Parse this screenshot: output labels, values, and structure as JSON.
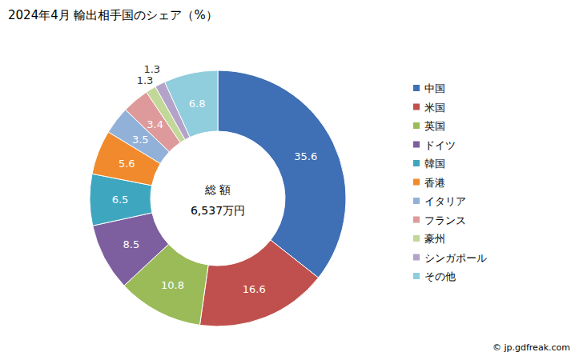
{
  "chart_data": {
    "type": "pie",
    "title": "2024年4月 輸出相手国のシェア（%）",
    "categories": [
      "中国",
      "米国",
      "英国",
      "ドイツ",
      "韓国",
      "香港",
      "イタリア",
      "フランス",
      "豪州",
      "シンガポール",
      "その他"
    ],
    "values": [
      35.6,
      16.6,
      10.8,
      8.5,
      6.5,
      5.6,
      3.5,
      3.4,
      1.3,
      1.3,
      6.8
    ],
    "colors": [
      "#3f6fb5",
      "#c0504d",
      "#9bbb59",
      "#7d5fa0",
      "#3fa6bf",
      "#f08a2c",
      "#92b1d8",
      "#de9a9a",
      "#c2d898",
      "#b4a3c9",
      "#90cddd"
    ],
    "data_labels": true,
    "legend": "right",
    "annotations": [
      "総 額",
      "6,537万円",
      "© jp.gdfreak.com"
    ]
  }
}
